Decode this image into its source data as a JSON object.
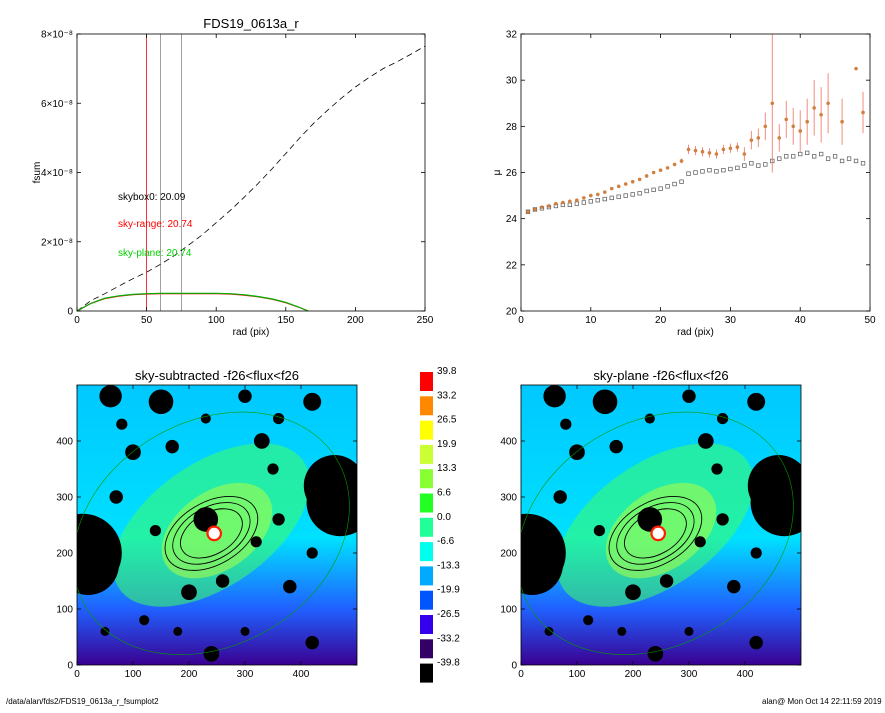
{
  "footer": {
    "path": "/data/alan/fds2/FDS19_0613a_r_fsumplot2",
    "stamp": "alan@  Mon Oct 14 22:11:59 2019"
  },
  "chart_data": [
    {
      "type": "line",
      "title": "FDS19_0613a_r",
      "xlabel": "rad (pix)",
      "ylabel": "fsum",
      "xlim": [
        0,
        250
      ],
      "ylim": [
        0,
        8e-08
      ],
      "xticks": [
        "0",
        "50",
        "100",
        "150",
        "200",
        "250"
      ],
      "yticks": [
        {
          "v": 0,
          "label": "0"
        },
        {
          "v": 2e-08,
          "label": "2×10⁻⁸"
        },
        {
          "v": 4e-08,
          "label": "4×10⁻⁸"
        },
        {
          "v": 6e-08,
          "label": "6×10⁻⁸"
        },
        {
          "v": 8e-08,
          "label": "8×10⁻⁸"
        }
      ],
      "vlines": [
        {
          "x": 50,
          "color": "#ff0000"
        },
        {
          "x": 60,
          "color": "#888888"
        },
        {
          "x": 75,
          "color": "#888888"
        }
      ],
      "annotations": [
        {
          "text": "skybox0: 20.09",
          "color": "#000000"
        },
        {
          "text": "sky-range: 20.74",
          "color": "#ff0000"
        },
        {
          "text": "sky-plane: 20.74",
          "color": "#00d000"
        }
      ],
      "series": [
        {
          "style": "dashed",
          "color": "#000000",
          "x": [
            0,
            10,
            20,
            30,
            40,
            50,
            60,
            70,
            80,
            90,
            100,
            110,
            120,
            130,
            140,
            150,
            160,
            170,
            180,
            190,
            200,
            210,
            220,
            230,
            240,
            250
          ],
          "y": [
            0,
            3e-09,
            5e-09,
            7.2e-09,
            9.3e-09,
            1.12e-08,
            1.35e-08,
            1.6e-08,
            1.9e-08,
            2.2e-08,
            2.55e-08,
            2.9e-08,
            3.28e-08,
            3.68e-08,
            4.1e-08,
            4.55e-08,
            5e-08,
            5.42e-08,
            5.8e-08,
            6.15e-08,
            6.47e-08,
            6.75e-08,
            7e-08,
            7.2e-08,
            7.42e-08,
            7.65e-08
          ]
        },
        {
          "style": "solid",
          "color": "#ff0000",
          "x": [
            0,
            10,
            20,
            30,
            40,
            50,
            60,
            80,
            100,
            110,
            120,
            130,
            140,
            150,
            160,
            166
          ],
          "y": [
            0,
            2.2e-09,
            3.6e-09,
            4.3e-09,
            4.7e-09,
            4.9e-09,
            5e-09,
            5e-09,
            5e-09,
            4.9e-09,
            4.6e-09,
            4.1e-09,
            3.4e-09,
            2.4e-09,
            1e-09,
            0
          ]
        },
        {
          "style": "solid",
          "color": "#00b000",
          "x": [
            0,
            10,
            20,
            30,
            40,
            50,
            60,
            80,
            100,
            110,
            120,
            130,
            140,
            150,
            160,
            166
          ],
          "y": [
            0,
            2.2e-09,
            3.7e-09,
            4.4e-09,
            4.8e-09,
            5e-09,
            5.1e-09,
            5.1e-09,
            5.1e-09,
            5e-09,
            4.7e-09,
            4.2e-09,
            3.5e-09,
            2.5e-09,
            1e-09,
            0
          ]
        }
      ]
    },
    {
      "type": "scatter",
      "title": "",
      "xlabel": "rad (pix)",
      "ylabel": "μ",
      "xlim": [
        0,
        50
      ],
      "ylim": [
        32,
        20
      ],
      "xticks": [
        "0",
        "10",
        "20",
        "30",
        "40",
        "50"
      ],
      "yticks": [
        "20",
        "22",
        "24",
        "26",
        "28",
        "30",
        "32"
      ],
      "series": [
        {
          "marker": "open-square",
          "color": "#555555",
          "x": [
            1,
            2,
            3,
            4,
            5,
            6,
            7,
            8,
            9,
            10,
            11,
            12,
            13,
            14,
            15,
            16,
            17,
            18,
            19,
            20,
            21,
            22,
            23,
            24,
            25,
            26,
            27,
            28,
            29,
            30,
            31,
            32,
            33,
            34,
            35,
            36,
            37,
            38,
            39,
            40,
            41,
            42,
            43,
            44,
            45,
            46,
            47,
            48,
            49
          ],
          "y": [
            24.3,
            24.4,
            24.45,
            24.5,
            24.55,
            24.6,
            24.6,
            24.65,
            24.7,
            24.75,
            24.8,
            24.85,
            24.9,
            24.95,
            25.0,
            25.05,
            25.1,
            25.2,
            25.25,
            25.3,
            25.4,
            25.5,
            25.6,
            25.95,
            26.0,
            26.05,
            26.1,
            26.05,
            26.1,
            26.15,
            26.2,
            26.3,
            26.4,
            26.3,
            26.35,
            26.5,
            26.6,
            26.7,
            26.7,
            26.8,
            26.85,
            26.7,
            26.8,
            26.6,
            26.7,
            26.5,
            26.6,
            26.5,
            26.4
          ]
        },
        {
          "marker": "dot-errorbar",
          "color": "#d08040",
          "ecolor": "#f08070",
          "x": [
            1,
            2,
            3,
            4,
            5,
            6,
            7,
            8,
            9,
            10,
            11,
            12,
            13,
            14,
            15,
            16,
            17,
            18,
            19,
            20,
            21,
            22,
            23,
            24,
            25,
            26,
            27,
            28,
            29,
            30,
            31,
            32,
            33,
            34,
            35,
            36,
            37,
            38,
            39,
            40,
            41,
            42,
            43,
            44,
            46,
            48,
            49
          ],
          "y": [
            24.3,
            24.4,
            24.5,
            24.55,
            24.65,
            24.7,
            24.75,
            24.8,
            24.9,
            25.0,
            25.05,
            25.15,
            25.3,
            25.4,
            25.5,
            25.6,
            25.7,
            25.85,
            26.0,
            26.1,
            26.2,
            26.35,
            26.5,
            27.0,
            26.95,
            26.9,
            26.85,
            26.8,
            27.0,
            27.05,
            27.1,
            26.8,
            27.4,
            27.5,
            28.0,
            29.0,
            27.5,
            28.3,
            28.0,
            27.8,
            28.2,
            28.8,
            28.5,
            29.0,
            28.2,
            30.5,
            28.6
          ],
          "err": [
            0.05,
            0.05,
            0.05,
            0.05,
            0.05,
            0.05,
            0.05,
            0.05,
            0.05,
            0.05,
            0.05,
            0.05,
            0.05,
            0.05,
            0.05,
            0.05,
            0.05,
            0.05,
            0.05,
            0.05,
            0.05,
            0.05,
            0.1,
            0.2,
            0.2,
            0.2,
            0.2,
            0.2,
            0.2,
            0.2,
            0.2,
            0.3,
            0.4,
            0.4,
            0.6,
            3.0,
            0.6,
            0.8,
            0.8,
            0.9,
            1.0,
            1.2,
            1.2,
            1.3,
            1.0,
            0,
            0.9
          ]
        }
      ]
    },
    {
      "type": "heatmap",
      "title": "sky-subtracted -f26<flux<f26",
      "xlim": [
        0,
        500
      ],
      "ylim": [
        0,
        500
      ],
      "xticks": [
        "0",
        "100",
        "200",
        "300",
        "400"
      ],
      "yticks": [
        "0",
        "100",
        "200",
        "300",
        "400"
      ]
    },
    {
      "type": "heatmap",
      "title": "sky-plane -f26<flux<f26",
      "xlim": [
        0,
        500
      ],
      "ylim": [
        0,
        500
      ],
      "xticks": [
        "0",
        "100",
        "200",
        "300",
        "400"
      ],
      "yticks": [
        "0",
        "100",
        "200",
        "300",
        "400"
      ]
    }
  ],
  "colorbar": {
    "labels": [
      "39.8",
      "33.2",
      "26.5",
      "19.9",
      "13.3",
      "6.6",
      "0.0",
      "-6.6",
      "-13.3",
      "-19.9",
      "-26.5",
      "-33.2",
      "-39.8"
    ],
    "colors": [
      "#ff0000",
      "#ff8800",
      "#ffff00",
      "#ccff33",
      "#88ff33",
      "#22ff22",
      "#22ff99",
      "#00ffee",
      "#00aaff",
      "#0055ff",
      "#3300ee",
      "#330066",
      "#000000"
    ]
  }
}
